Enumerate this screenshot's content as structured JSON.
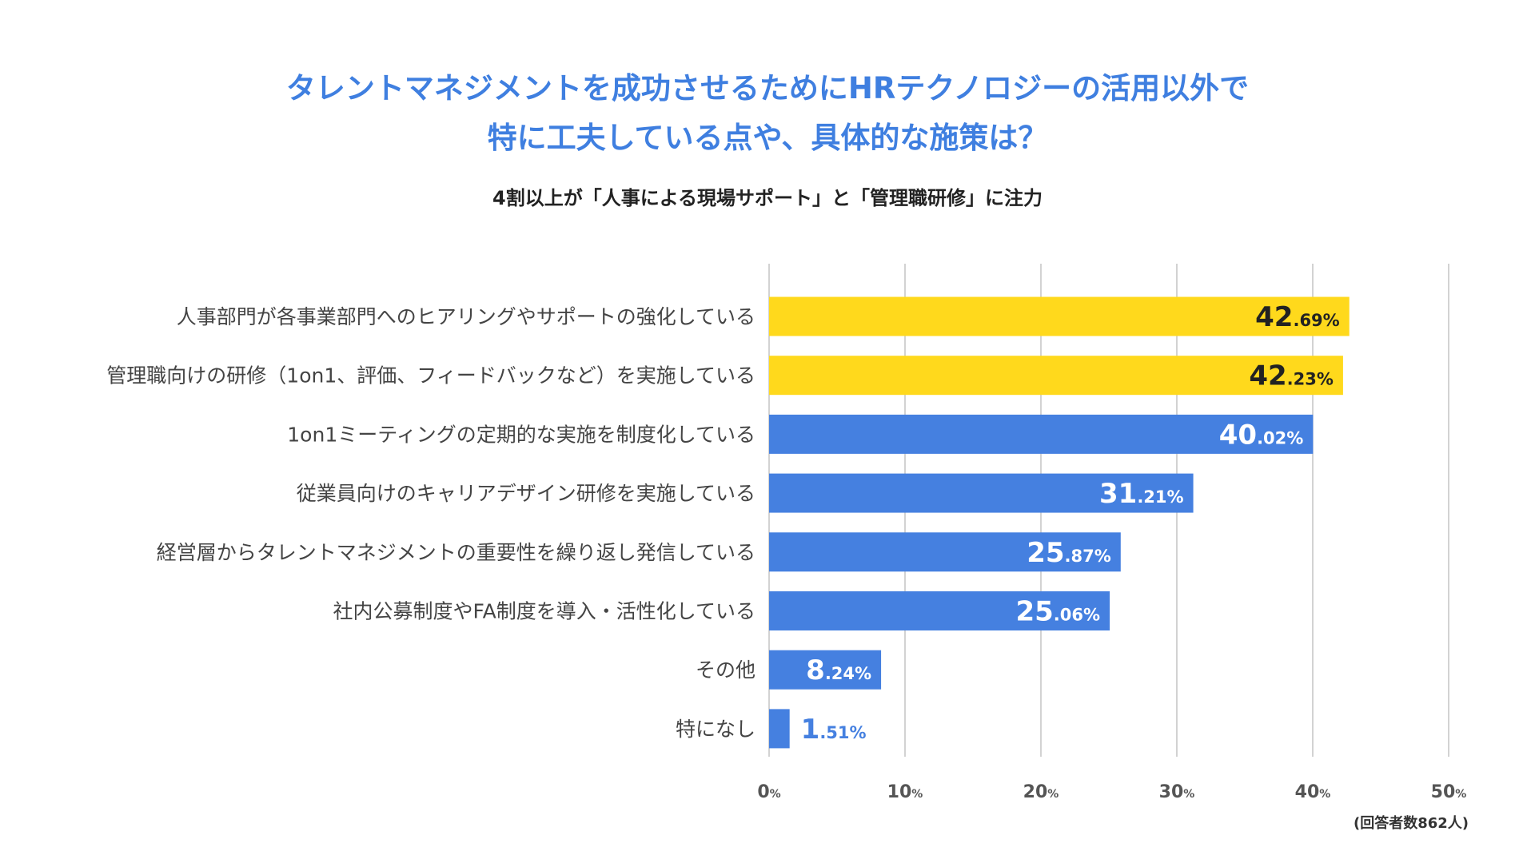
{
  "chart_data": {
    "type": "bar",
    "orientation": "horizontal",
    "title": [
      "タレントマネジメントを成功させるためにHRテクノロジーの活用以外で",
      "特に工夫している点や、具体的な施策は？"
    ],
    "subtitle": "4割以上が「人事による現場サポート」と「管理職研修」に注力",
    "categories": [
      "人事部門が各事業部門へのヒアリングやサポートの強化している",
      "管理職向けの研修（1on1、評価、フィードバックなど）を実施している",
      "1on1ミーティングの定期的な実施を制度化している",
      "従業員向けのキャリアデザイン研修を実施している",
      "経営層からタレントマネジメントの重要性を繰り返し発信している",
      "社内公募制度やFA制度を導入・活性化している",
      "その他",
      "特になし"
    ],
    "values": [
      42.69,
      42.23,
      40.02,
      31.21,
      25.87,
      25.06,
      8.24,
      1.51
    ],
    "highlight": [
      true,
      true,
      false,
      false,
      false,
      false,
      false,
      false
    ],
    "xlim": [
      0,
      50
    ],
    "xticks": [
      0,
      10,
      20,
      30,
      40,
      50
    ],
    "tick_suffix": "%",
    "grid": "vertical",
    "colors": {
      "highlight": "#FFD91C",
      "default": "#4580E0",
      "title": "#3F7FE0"
    },
    "footnote": "(回答者数862人)"
  }
}
